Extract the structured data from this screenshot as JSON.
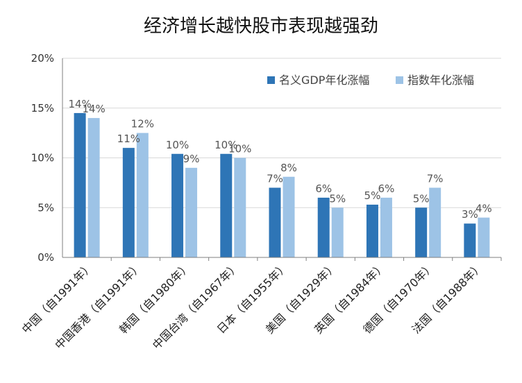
{
  "chart_data": {
    "type": "bar",
    "title": "经济增长越快股市表现越强劲",
    "xlabel": "",
    "ylabel": "",
    "ylim": [
      0,
      20
    ],
    "yticks": [
      "0%",
      "5%",
      "10%",
      "15%",
      "20%"
    ],
    "grid": true,
    "legend_position": "top-right",
    "categories": [
      "中国（自1991年）",
      "中国香港（自1991年）",
      "韩国（自1980年）",
      "中国台湾（自1967年）",
      "日本（自1955年）",
      "美国（自1929年）",
      "英国（自1984年）",
      "德国（自1970年）",
      "法国（自1988年）"
    ],
    "series": [
      {
        "name": "名义GDP年化涨幅",
        "color": "#2E75B6",
        "values": [
          14.5,
          11,
          10.4,
          10.4,
          7,
          6,
          5.3,
          5,
          3.4
        ],
        "labels": [
          "14%",
          "11%",
          "10%",
          "10%",
          "7%",
          "6%",
          "5%",
          "5%",
          "3%"
        ]
      },
      {
        "name": "指数年化涨幅",
        "color": "#9DC3E6",
        "values": [
          14,
          12.5,
          9,
          10,
          8.1,
          5,
          6,
          7,
          4
        ],
        "labels": [
          "14%",
          "12%",
          "9%",
          "10%",
          "8%",
          "5%",
          "6%",
          "7%",
          "4%"
        ]
      }
    ]
  }
}
